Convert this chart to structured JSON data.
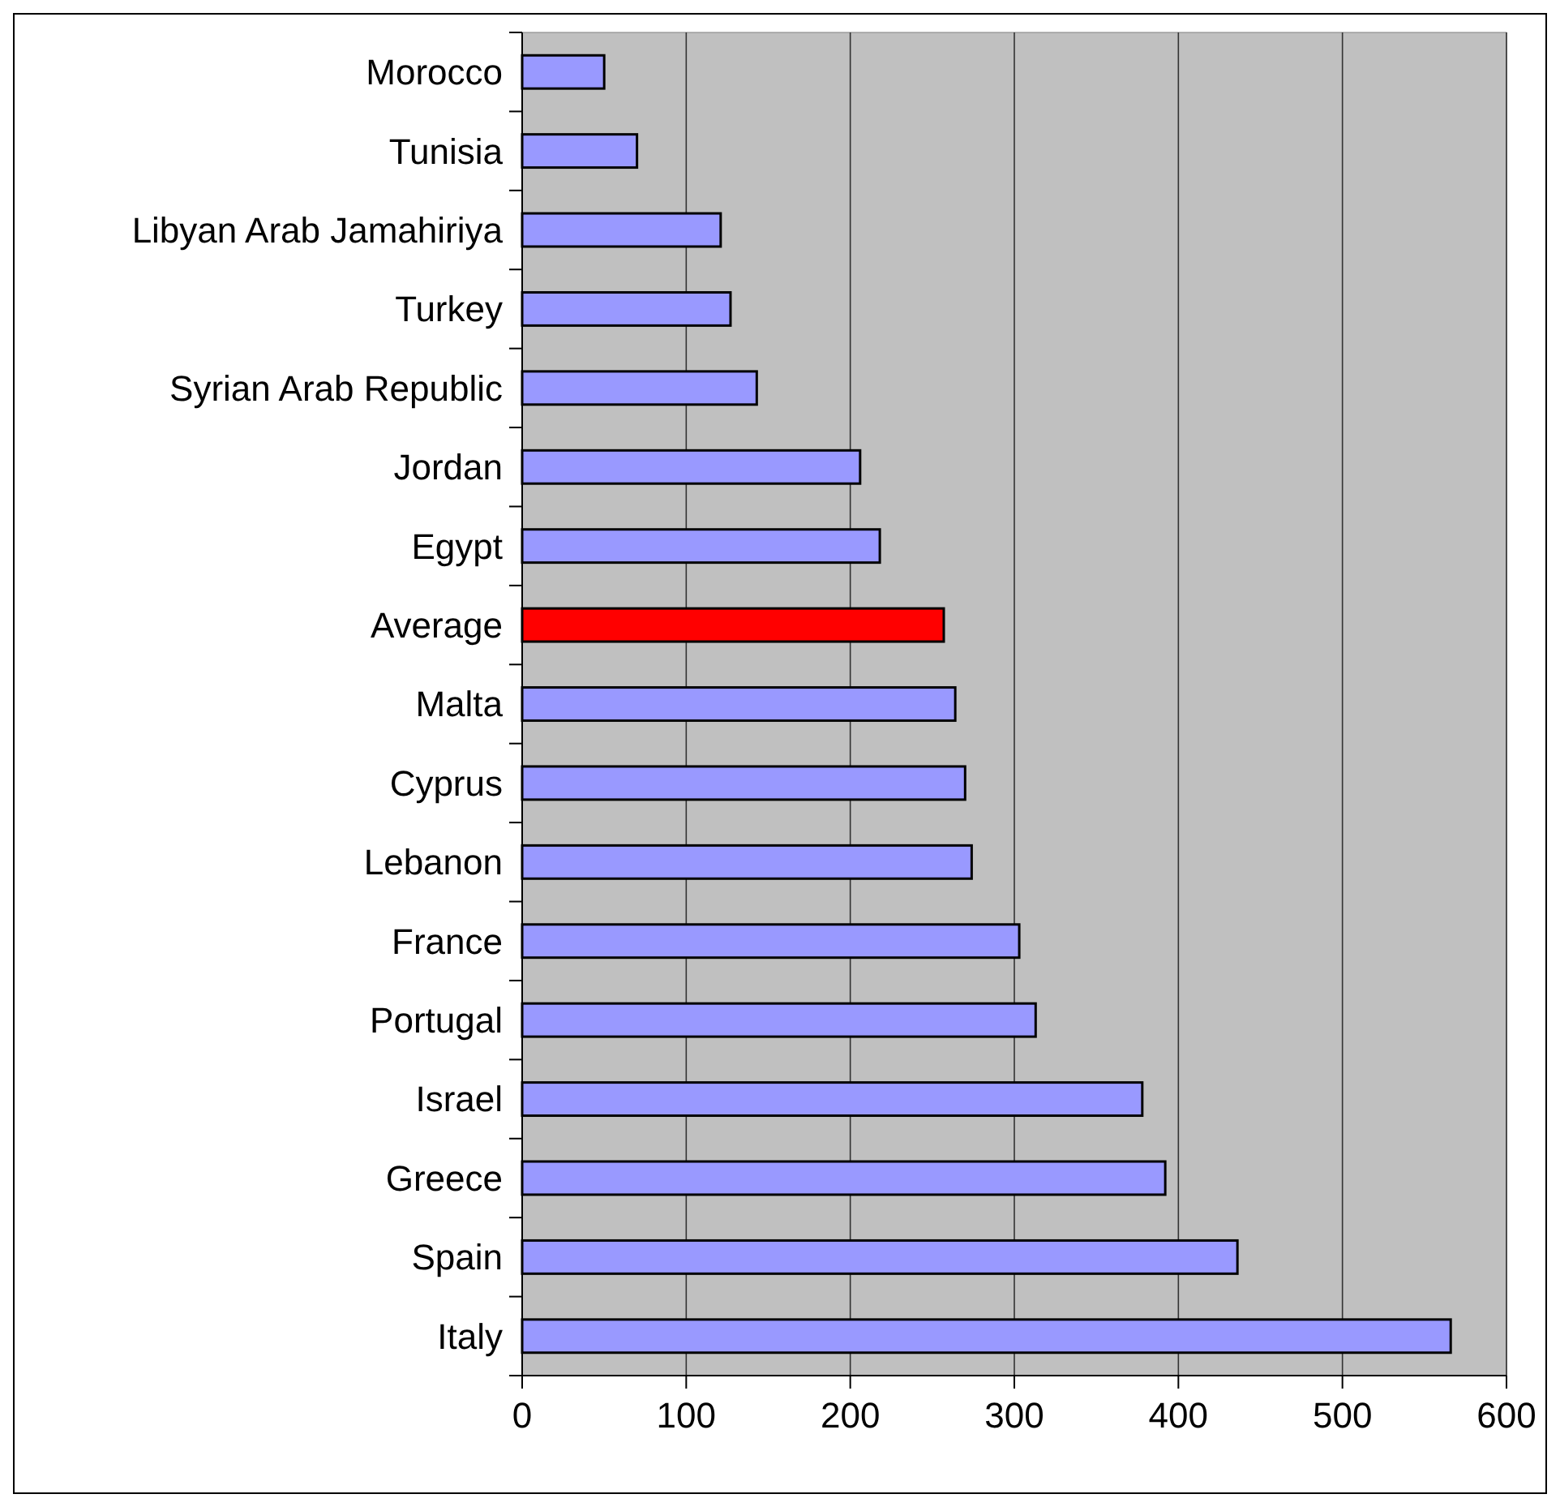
{
  "chart_data": {
    "type": "bar",
    "orientation": "horizontal",
    "categories": [
      "Morocco",
      "Tunisia",
      "Libyan Arab Jamahiriya",
      "Turkey",
      "Syrian Arab Republic",
      "Jordan",
      "Egypt",
      "Average",
      "Malta",
      "Cyprus",
      "Lebanon",
      "France",
      "Portugal",
      "Israel",
      "Greece",
      "Spain",
      "Italy"
    ],
    "values": [
      50,
      70,
      121,
      127,
      143,
      206,
      218,
      257,
      264,
      270,
      274,
      303,
      313,
      378,
      392,
      436,
      566
    ],
    "colors": [
      "#9999ff",
      "#9999ff",
      "#9999ff",
      "#9999ff",
      "#9999ff",
      "#9999ff",
      "#9999ff",
      "#ff0000",
      "#9999ff",
      "#9999ff",
      "#9999ff",
      "#9999ff",
      "#9999ff",
      "#9999ff",
      "#9999ff",
      "#9999ff",
      "#9999ff"
    ],
    "xlim": [
      0,
      600
    ],
    "xticks": [
      0,
      100,
      200,
      300,
      400,
      500,
      600
    ],
    "grid": "x"
  }
}
